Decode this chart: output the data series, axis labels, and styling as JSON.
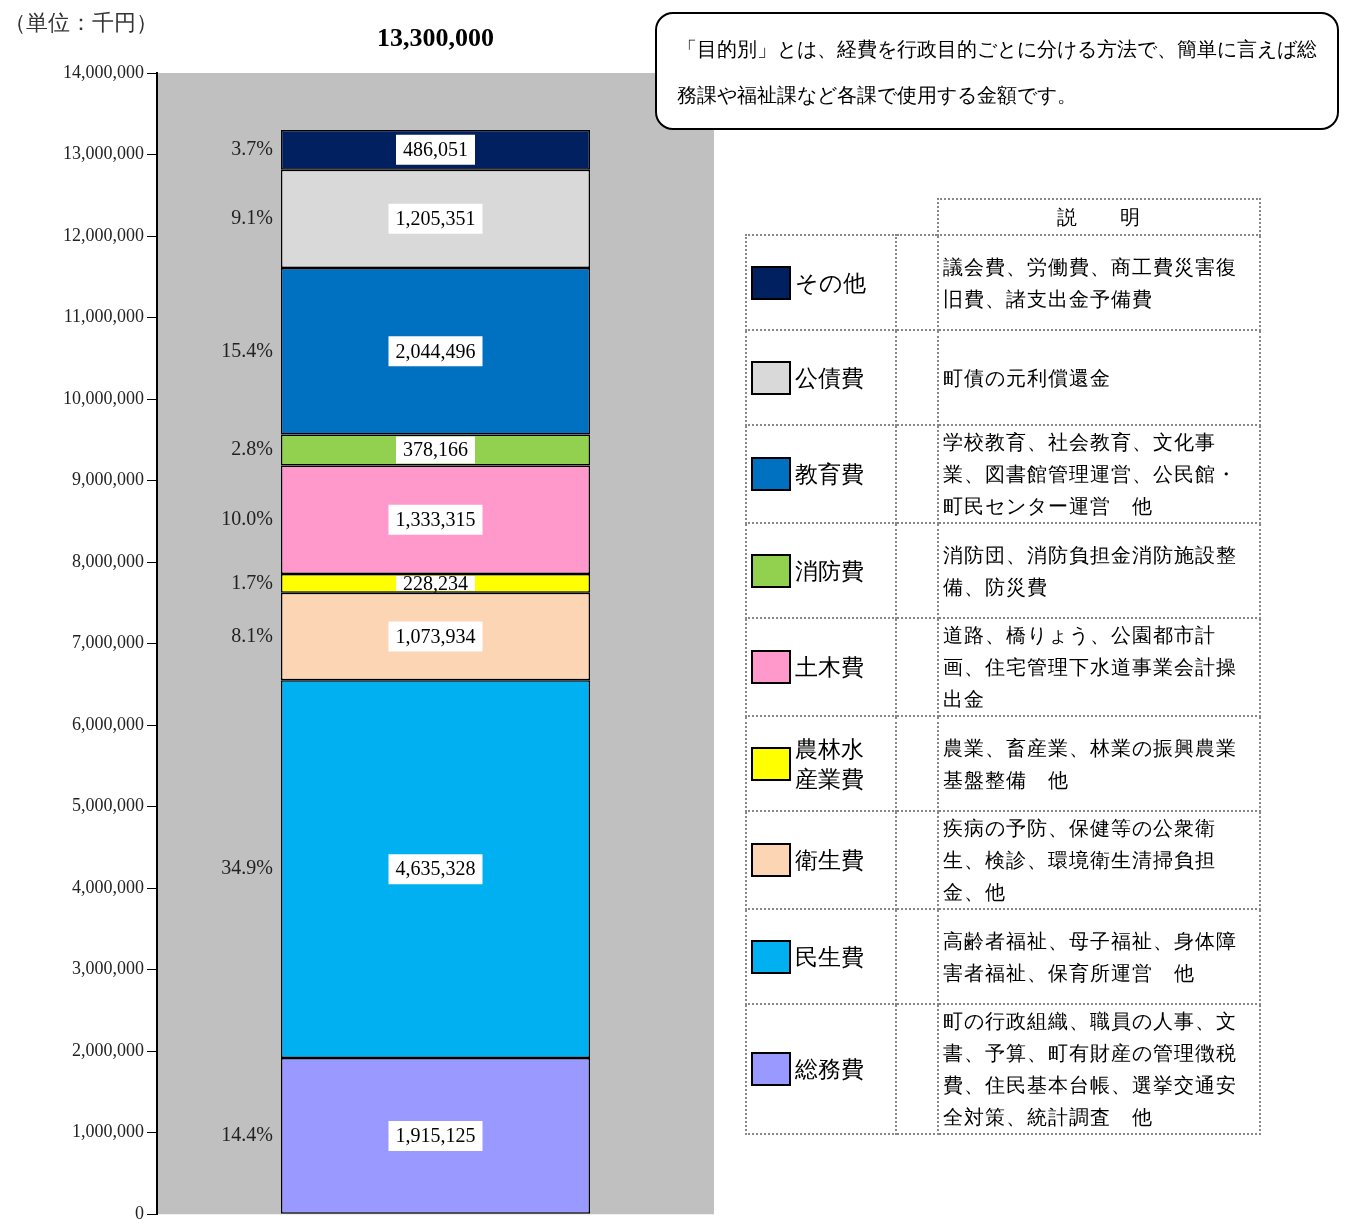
{
  "chart_data": {
    "type": "bar",
    "stacked": true,
    "ylabel": "（単位：千円）",
    "legend_title": "説　　明",
    "legend": "right",
    "tick_labels": "y",
    "categories": [
      null
    ],
    "ylim": [
      0,
      14000000
    ],
    "yticks": [
      {
        "value": 0,
        "label": "0"
      },
      {
        "value": 1000000,
        "label": "1,000,000"
      },
      {
        "value": 2000000,
        "label": "2,000,000"
      },
      {
        "value": 3000000,
        "label": "3,000,000"
      },
      {
        "value": 4000000,
        "label": "4,000,000"
      },
      {
        "value": 5000000,
        "label": "5,000,000"
      },
      {
        "value": 6000000,
        "label": "6,000,000"
      },
      {
        "value": 7000000,
        "label": "7,000,000"
      },
      {
        "value": 8000000,
        "label": "8,000,000"
      },
      {
        "value": 9000000,
        "label": "9,000,000"
      },
      {
        "value": 10000000,
        "label": "10,000,000"
      },
      {
        "value": 11000000,
        "label": "11,000,000"
      },
      {
        "value": 12000000,
        "label": "12,000,000"
      },
      {
        "value": 13000000,
        "label": "13,000,000"
      },
      {
        "value": 14000000,
        "label": "14,000,000"
      }
    ],
    "totals": [
      "13,300,000"
    ],
    "series": [
      {
        "name": "総務費",
        "color": "#9999ff",
        "values": [
          1915125
        ],
        "value_labels": [
          "1,915,125"
        ]
      },
      {
        "name": "民生費",
        "color": "#00b0f0",
        "values": [
          4635328
        ],
        "value_labels": [
          "4,635,328"
        ]
      },
      {
        "name": "衛生費",
        "color": "#fcd5b4",
        "values": [
          1073934
        ],
        "value_labels": [
          "1,073,934"
        ]
      },
      {
        "name": "農林水産業費",
        "color": "#ffff00",
        "values": [
          228234
        ],
        "value_labels": [
          "228,234"
        ]
      },
      {
        "name": "土木費",
        "color": "#ff99cc",
        "values": [
          1333315
        ],
        "value_labels": [
          "1,333,315"
        ]
      },
      {
        "name": "消防費",
        "color": "#92d050",
        "values": [
          378166
        ],
        "value_labels": [
          "378,166"
        ]
      },
      {
        "name": "教育費",
        "color": "#0070c0",
        "values": [
          2044496
        ],
        "value_labels": [
          "2,044,496"
        ]
      },
      {
        "name": "公債費",
        "color": "#d9d9d9",
        "values": [
          1205351
        ],
        "value_labels": [
          "1,205,351"
        ]
      },
      {
        "name": "その他",
        "color": "#002060",
        "values": [
          486051
        ],
        "value_labels": [
          "486,051"
        ]
      }
    ],
    "annotations": [
      "「目的別」とは、経費を行政目的ごとに分ける方法で、簡単に言えば総務課や福祉課など各課で使用する金額です。",
      "議会費、労働費、商工費災害復旧費、諸支出金予備費",
      "町債の元利償還金",
      "学校教育、社会教育、文化事業、図書館管理運営、公民館・町民センター運営　他",
      "消防団、消防負担金消防施設整備、防災費",
      "道路、橋りょう、公園都市計画、住宅管理下水道事業会計操出金",
      "農業、畜産業、林業の振興農業基盤整備　他",
      "疾病の予防、保健等の公衆衛生、検診、環境衛生清掃負担金、他",
      "高齢者福祉、母子福祉、身体障害者福祉、保育所運営　他",
      "町の行政組織、職員の人事、文書、予算、町有財産の管理徴税費、住民基本台帳、選挙交通安全対策、統計調査　他",
      "14.4%",
      "34.9%",
      "8.1%",
      "1.7%",
      "10.0%",
      "2.8%",
      "15.4%",
      "9.1%",
      "3.7%"
    ]
  }
}
